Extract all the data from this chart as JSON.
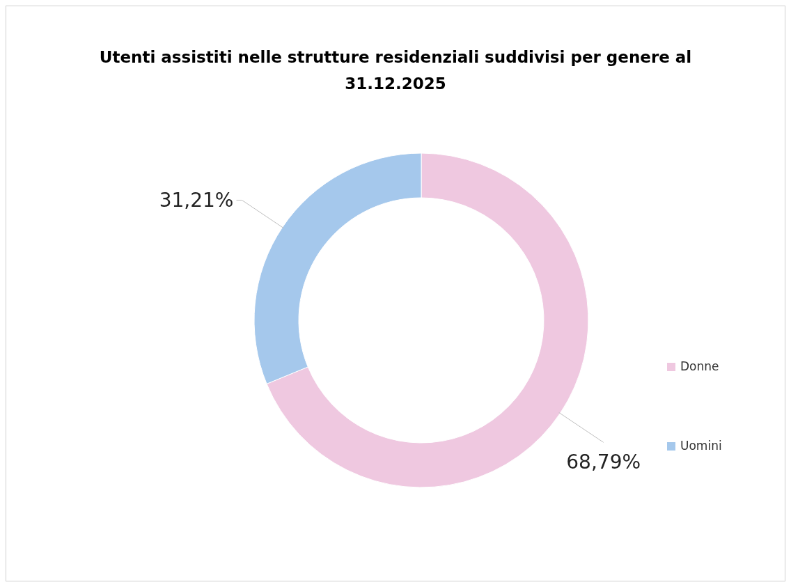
{
  "chart_data": {
    "type": "donut",
    "title": "Utenti assistiti nelle strutture residenziali suddivisi per genere al 31.12.2025",
    "categories": [
      "Donne",
      "Uomini"
    ],
    "values": [
      68.79,
      31.21
    ],
    "colors": [
      "#efc8e0",
      "#a5c8ec"
    ],
    "value_labels": [
      "68,79%",
      "31,21%"
    ],
    "legend": "right"
  }
}
